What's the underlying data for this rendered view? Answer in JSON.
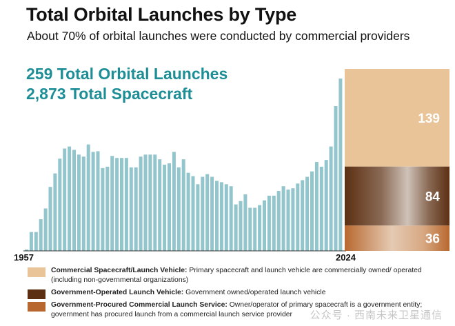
{
  "title": "Total Orbital Launches by Type",
  "subtitle": "About 70% of orbital launches were conducted by commercial providers",
  "stats": {
    "launches": "259 Total Orbital Launches",
    "spacecraft": "2,873 Total Spacecraft"
  },
  "colors": {
    "history_bars": "#93c5cc",
    "commercial": "#e9c499",
    "government_operated": "#5c2f12",
    "government_procured": "#b8682f",
    "stat_text": "#1e8e96"
  },
  "legend": [
    {
      "name": "Commercial Spacecraft/Launch Vehicle:",
      "description": "Primary spacecraft and launch vehicle are commercially owned/ operated (including non-governmental organizations)",
      "color": "#e9c499"
    },
    {
      "name": "Government-Operated Launch Vehicle:",
      "description": "Government owned/operated launch vehicle",
      "color": "#5c2f12"
    },
    {
      "name": "Government-Procured Commercial Launch Service:",
      "description": "Owner/operator of primary spacecraft is a government entity; government has procured launch from a commercial launch service provider",
      "color": "#b8682f"
    }
  ],
  "watermark": "公众号 · 西南未来卫星通信",
  "chart_data": [
    {
      "type": "bar",
      "x_start_label": "1957",
      "x_end_label": "2024",
      "x": [
        1957,
        1958,
        1959,
        1960,
        1961,
        1962,
        1963,
        1964,
        1965,
        1966,
        1967,
        1968,
        1969,
        1970,
        1971,
        1972,
        1973,
        1974,
        1975,
        1976,
        1977,
        1978,
        1979,
        1980,
        1981,
        1982,
        1983,
        1984,
        1985,
        1986,
        1987,
        1988,
        1989,
        1990,
        1991,
        1992,
        1993,
        1994,
        1995,
        1996,
        1997,
        1998,
        1999,
        2000,
        2001,
        2002,
        2003,
        2004,
        2005,
        2006,
        2007,
        2008,
        2009,
        2010,
        2011,
        2012,
        2013,
        2014,
        2015,
        2016,
        2017,
        2018,
        2019,
        2020,
        2021,
        2022,
        2023
      ],
      "values": [
        2,
        28,
        28,
        47,
        63,
        95,
        115,
        137,
        152,
        155,
        150,
        143,
        140,
        158,
        147,
        148,
        123,
        125,
        141,
        138,
        138,
        138,
        124,
        124,
        140,
        143,
        143,
        143,
        136,
        128,
        130,
        147,
        124,
        136,
        116,
        111,
        99,
        110,
        114,
        110,
        104,
        102,
        99,
        96,
        69,
        74,
        84,
        64,
        64,
        68,
        75,
        82,
        82,
        89,
        96,
        91,
        93,
        100,
        105,
        110,
        118,
        132,
        125,
        135,
        155,
        215,
        256
      ],
      "ylim": [
        0,
        260
      ]
    },
    {
      "type": "bar",
      "stacked": true,
      "categories": [
        "2024"
      ],
      "series": [
        {
          "name": "Commercial Spacecraft/Launch Vehicle",
          "values": [
            139
          ]
        },
        {
          "name": "Government-Operated Launch Vehicle",
          "values": [
            84
          ]
        },
        {
          "name": "Government-Procured Commercial Launch Service",
          "values": [
            36
          ]
        }
      ],
      "total": 259
    }
  ]
}
